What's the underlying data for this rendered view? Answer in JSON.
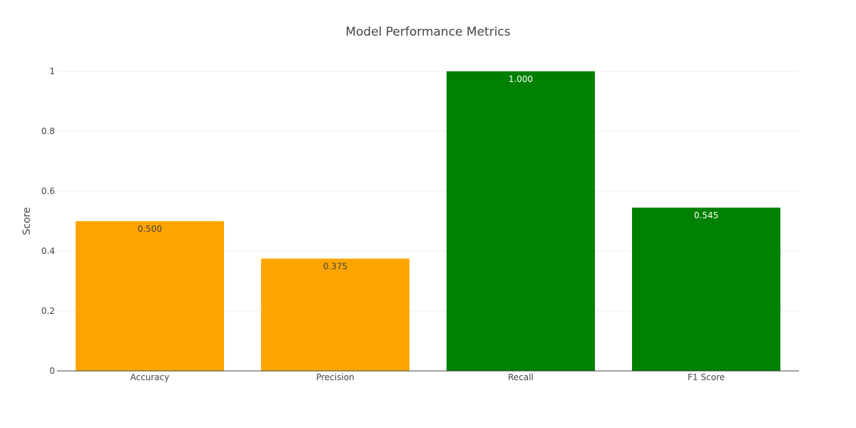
{
  "chart_data": {
    "type": "bar",
    "title": "Model Performance Metrics",
    "xlabel": "",
    "ylabel": "Score",
    "categories": [
      "Accuracy",
      "Precision",
      "Recall",
      "F1 Score"
    ],
    "values": [
      0.5,
      0.375,
      1.0,
      0.545
    ],
    "data_labels": [
      "0.500",
      "0.375",
      "1.000",
      "0.545"
    ],
    "bar_colors": [
      "#ffa500",
      "#ffa500",
      "#008000",
      "#008000"
    ],
    "label_colors": [
      "#444444",
      "#444444",
      "#ffffff",
      "#ffffff"
    ],
    "ylim": [
      0,
      1
    ],
    "yticks": [
      0,
      0.2,
      0.4,
      0.6,
      0.8,
      1
    ],
    "ytick_labels": [
      "0",
      "0.2",
      "0.4",
      "0.6",
      "0.8",
      "1"
    ],
    "grid": true,
    "legend": "none"
  },
  "colors": {
    "grid": "#eeeeee",
    "axis_line": "#444444"
  }
}
